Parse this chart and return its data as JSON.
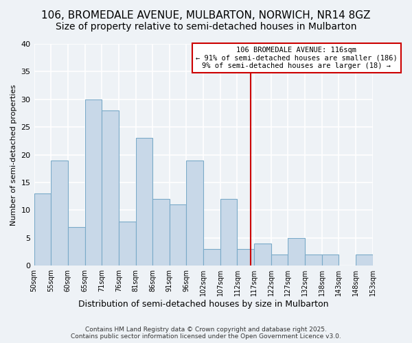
{
  "title1": "106, BROMEDALE AVENUE, MULBARTON, NORWICH, NR14 8GZ",
  "title2": "Size of property relative to semi-detached houses in Mulbarton",
  "xlabel": "Distribution of semi-detached houses by size in Mulbarton",
  "ylabel": "Number of semi-detached properties",
  "bin_labels": [
    "50sqm",
    "55sqm",
    "60sqm",
    "65sqm",
    "71sqm",
    "76sqm",
    "81sqm",
    "86sqm",
    "91sqm",
    "96sqm",
    "102sqm",
    "107sqm",
    "112sqm",
    "117sqm",
    "122sqm",
    "127sqm",
    "132sqm",
    "138sqm",
    "143sqm",
    "148sqm",
    "153sqm"
  ],
  "values": [
    13,
    19,
    7,
    30,
    28,
    8,
    23,
    12,
    11,
    19,
    3,
    12,
    3,
    4,
    2,
    5,
    2,
    2,
    0,
    2
  ],
  "bar_color": "#c8d8e8",
  "bar_edge_color": "#7aaac8",
  "vline_color": "#cc0000",
  "annotation_text": "106 BROMEDALE AVENUE: 116sqm\n← 91% of semi-detached houses are smaller (186)\n9% of semi-detached houses are larger (18) →",
  "annotation_box_color": "#ffffff",
  "ylim": [
    0,
    40
  ],
  "yticks": [
    0,
    5,
    10,
    15,
    20,
    25,
    30,
    35,
    40
  ],
  "footer": "Contains HM Land Registry data © Crown copyright and database right 2025.\nContains public sector information licensed under the Open Government Licence v3.0.",
  "bg_color": "#eef2f6",
  "grid_color": "#ffffff",
  "title_fontsize": 11,
  "subtitle_fontsize": 10
}
